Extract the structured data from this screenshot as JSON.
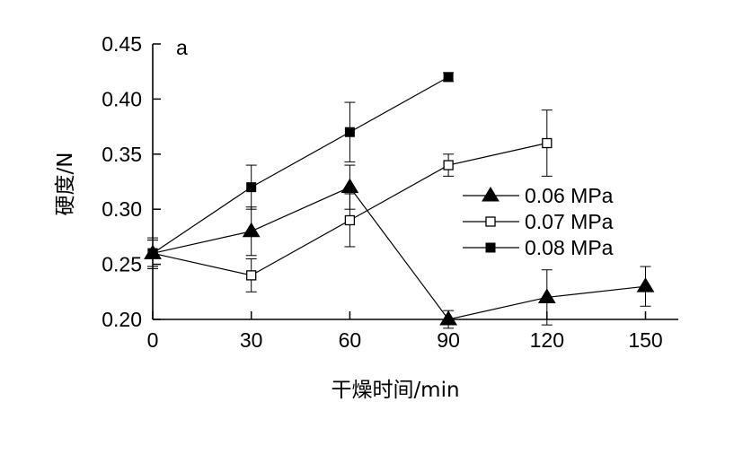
{
  "chart_data": {
    "type": "line",
    "panel_label": "a",
    "xlabel": "干燥时间/min",
    "ylabel": "硬度/N",
    "xlim": [
      0,
      160
    ],
    "ylim": [
      0.2,
      0.45
    ],
    "x_ticks": [
      0,
      30,
      60,
      90,
      120,
      150
    ],
    "x_tick_labels": [
      "0",
      "30",
      "60",
      "90",
      "120",
      "150"
    ],
    "y_ticks": [
      0.2,
      0.25,
      0.3,
      0.35,
      0.4,
      0.45
    ],
    "y_tick_labels": [
      "0.20",
      "0.25",
      "0.30",
      "0.35",
      "0.40",
      "0.45"
    ],
    "grid": false,
    "legend_position": "right",
    "series": [
      {
        "name": "0.06 MPa",
        "marker": "filled-triangle",
        "x": [
          0,
          30,
          60,
          90,
          120,
          150
        ],
        "y": [
          0.26,
          0.28,
          0.32,
          0.2,
          0.22,
          0.23
        ],
        "error": [
          0.012,
          0.022,
          0.02,
          0.008,
          0.025,
          0.018
        ]
      },
      {
        "name": "0.07 MPa",
        "marker": "open-square",
        "x": [
          0,
          30,
          60,
          90,
          120
        ],
        "y": [
          0.26,
          0.24,
          0.29,
          0.34,
          0.36
        ],
        "error": [
          0.012,
          0.015,
          0.024,
          0.01,
          0.03
        ]
      },
      {
        "name": "0.08 MPa",
        "marker": "filled-square",
        "x": [
          0,
          30,
          60,
          90
        ],
        "y": [
          0.26,
          0.32,
          0.37,
          0.42
        ],
        "error": [
          0.014,
          0.02,
          0.027,
          0.004
        ]
      }
    ]
  }
}
